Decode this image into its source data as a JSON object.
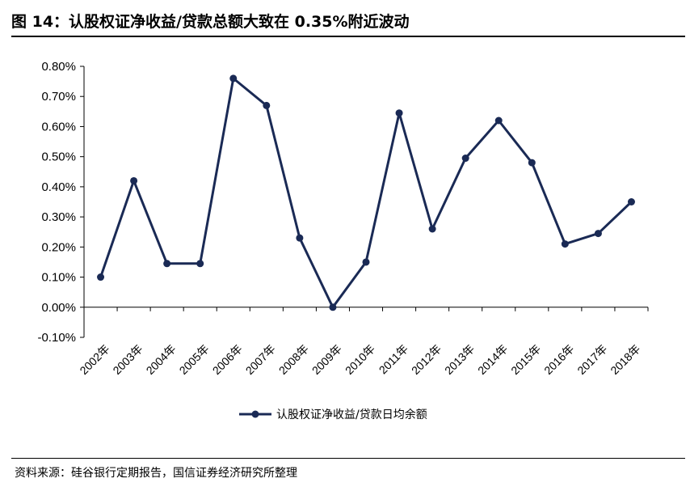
{
  "header": {
    "title": "图 14：认股权证净收益/贷款总额大致在 0.35%附近波动"
  },
  "footer": {
    "source": "资料来源：硅谷银行定期报告，国信证券经济研究所整理"
  },
  "colors": {
    "series": "#1a2a55",
    "axis": "#000000"
  },
  "chart_data": {
    "type": "line",
    "title": "",
    "xlabel": "",
    "ylabel": "",
    "x": [
      "2002年",
      "2003年",
      "2004年",
      "2005年",
      "2006年",
      "2007年",
      "2008年",
      "2009年",
      "2010年",
      "2011年",
      "2012年",
      "2013年",
      "2014年",
      "2015年",
      "2016年",
      "2017年",
      "2018年"
    ],
    "series": [
      {
        "name": "认股权证净收益/贷款日均余额",
        "unit": "%",
        "values": [
          0.1,
          0.42,
          0.145,
          0.145,
          0.76,
          0.67,
          0.23,
          0.0,
          0.15,
          0.645,
          0.26,
          0.495,
          0.62,
          0.48,
          0.21,
          0.245,
          0.35
        ]
      }
    ],
    "ylim": [
      -0.1,
      0.8
    ],
    "yticks": [
      -0.1,
      0.0,
      0.1,
      0.2,
      0.3,
      0.4,
      0.5,
      0.6,
      0.7,
      0.8
    ],
    "ytick_labels": [
      "-0.10%",
      "0.00%",
      "0.10%",
      "0.20%",
      "0.30%",
      "0.40%",
      "0.50%",
      "0.60%",
      "0.70%",
      "0.80%"
    ],
    "grid": false,
    "legend_position": "bottom"
  }
}
